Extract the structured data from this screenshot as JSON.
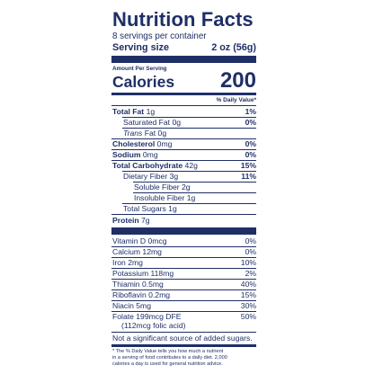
{
  "title": "Nutrition Facts",
  "servings": "8 servings per container",
  "serving_size": {
    "label": "Serving size",
    "value": "2 oz (56g)"
  },
  "amount_per_serving": "Amount Per Serving",
  "calories": {
    "label": "Calories",
    "value": "200"
  },
  "dv_header": "% Daily Value*",
  "nutrients": [
    {
      "name": "Total Fat",
      "amount": "1g",
      "dv": "1%"
    },
    {
      "name": "Saturated Fat",
      "amount": "0g",
      "dv": "0%"
    },
    {
      "name": "Trans",
      "suffix": " Fat 0g",
      "dv": ""
    },
    {
      "name": "Cholesterol",
      "amount": "0mg",
      "dv": "0%"
    },
    {
      "name": "Sodium",
      "amount": "0mg",
      "dv": "0%"
    },
    {
      "name": "Total Carbohydrate",
      "amount": "42g",
      "dv": "15%"
    },
    {
      "name": "Dietary Fiber",
      "amount": "3g",
      "dv": "11%"
    },
    {
      "name": "Soluble Fiber",
      "amount": "2g",
      "dv": ""
    },
    {
      "name": "Insoluble Fiber",
      "amount": "1g",
      "dv": ""
    },
    {
      "name": "Total Sugars",
      "amount": "1g",
      "dv": ""
    },
    {
      "name": "Protein",
      "amount": "7g",
      "dv": ""
    }
  ],
  "vitamins": [
    {
      "name": "Vitamin D 0mcg",
      "dv": "0%"
    },
    {
      "name": "Calcium 12mg",
      "dv": "0%"
    },
    {
      "name": "Iron 2mg",
      "dv": "10%"
    },
    {
      "name": "Potassium 118mg",
      "dv": "2%"
    },
    {
      "name": "Thiamin 0.5mg",
      "dv": "40%"
    },
    {
      "name": "Riboflavin 0.2mg",
      "dv": "15%"
    },
    {
      "name": "Niacin 5mg",
      "dv": "30%"
    },
    {
      "name": "Folate 199mcg DFE",
      "dv": "50%",
      "sub": "(112mcg folic acid)"
    }
  ],
  "added_sugars_note": "Not a significant source of added sugars.",
  "footnote": {
    "line1": "* The % Daily Value tells you how much a nutrient",
    "line2": "in a serving of food contributes to a daily diet. 2,000",
    "line3": "calories a day is used for general nutrition advice."
  }
}
